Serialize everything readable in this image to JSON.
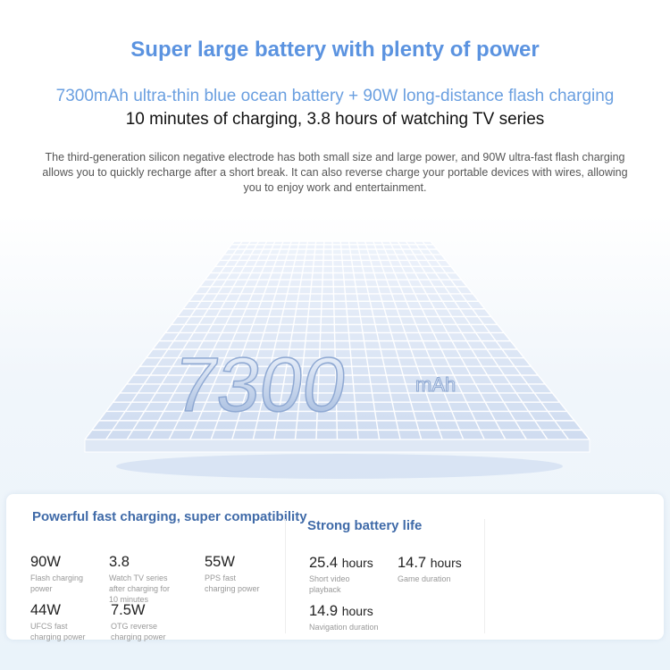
{
  "header": {
    "title": "Super large battery with plenty of power",
    "subtitle_blue": "7300mAh ultra-thin blue ocean battery + 90W long-distance flash charging",
    "subtitle_black": "10 minutes of charging, 3.8 hours of watching TV series",
    "description": "The third-generation silicon negative electrode has both small size and large power, and 90W ultra-fast flash charging allows you to quickly recharge after a short break. It can also reverse charge your portable devices with wires, allowing you to enjoy work and entertainment."
  },
  "battery_graphic": {
    "capacity": "7300",
    "unit": "mAh"
  },
  "charging": {
    "heading": "Powerful fast charging, super compatibility",
    "stats": [
      {
        "value": "90W",
        "label": "Flash charging power"
      },
      {
        "value": "3.8",
        "label": "Watch TV series after charging for 10 minutes"
      },
      {
        "value": "55W",
        "label": "PPS fast charging power"
      },
      {
        "value": "44W",
        "label": "UFCS fast charging power"
      },
      {
        "value": "7.5W",
        "label": "OTG reverse charging power"
      }
    ]
  },
  "battery_life": {
    "heading": "Strong battery life",
    "stats": [
      {
        "value": "25.4",
        "unit": "hours",
        "label": "Short video playback"
      },
      {
        "value": "14.7",
        "unit": "hours",
        "label": "Game duration"
      },
      {
        "value": "14.9",
        "unit": "hours",
        "label": "Navigation duration"
      }
    ]
  },
  "colors": {
    "accent": "#5b93e0",
    "heading": "#3f6aa8"
  }
}
